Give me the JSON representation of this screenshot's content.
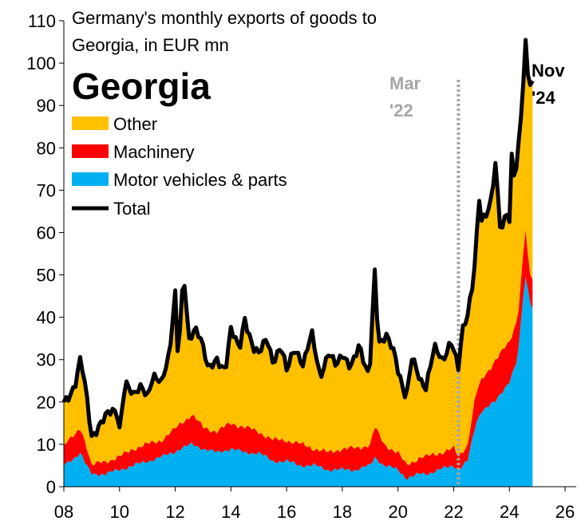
{
  "chart_data": {
    "type": "area",
    "title": "Georgia",
    "subtitle_lines": [
      "Germany's monthly exports of goods to",
      "Georgia, in EUR mn"
    ],
    "x_ticks": [
      "08",
      "10",
      "12",
      "14",
      "16",
      "18",
      "20",
      "22",
      "24",
      "26"
    ],
    "x_range": [
      2008,
      2026.4
    ],
    "ylim": [
      0,
      110
    ],
    "y_ticks": [
      "0",
      "10",
      "20",
      "30",
      "40",
      "50",
      "60",
      "70",
      "80",
      "90",
      "100",
      "110"
    ],
    "grid": false,
    "legend_position": "top-left",
    "colors": {
      "other": "#FFC000",
      "machinery": "#FF0000",
      "motor": "#00B0F0",
      "total": "#000000",
      "marker_line": "#A6A6A6"
    },
    "annotations": [
      {
        "id": "mar22",
        "lines": [
          "Mar",
          "'22"
        ],
        "x": 2022.17,
        "color": "#A6A6A6"
      },
      {
        "id": "nov24",
        "lines": [
          "Nov",
          "'24"
        ],
        "color": "#000000"
      }
    ],
    "series": [
      {
        "key": "other",
        "name": "Other",
        "role": "area"
      },
      {
        "key": "machinery",
        "name": "Machinery",
        "role": "area"
      },
      {
        "key": "motor",
        "name": "Motor vehicles & parts",
        "role": "area"
      },
      {
        "key": "total",
        "name": "Total",
        "role": "line"
      }
    ],
    "x_start": "2008-01",
    "x_end": "2024-11",
    "anchors": {
      "total": [
        [
          2008.0,
          20
        ],
        [
          2008.2,
          22
        ],
        [
          2008.4,
          24
        ],
        [
          2008.6,
          30
        ],
        [
          2008.8,
          22
        ],
        [
          2009.0,
          12
        ],
        [
          2009.3,
          15
        ],
        [
          2009.6,
          17
        ],
        [
          2009.9,
          18
        ],
        [
          2010.0,
          14
        ],
        [
          2010.2,
          25
        ],
        [
          2010.5,
          21
        ],
        [
          2010.8,
          24
        ],
        [
          2011.0,
          22
        ],
        [
          2011.2,
          26
        ],
        [
          2011.5,
          24
        ],
        [
          2011.8,
          32
        ],
        [
          2011.9,
          40
        ],
        [
          2012.0,
          46
        ],
        [
          2012.1,
          30
        ],
        [
          2012.3,
          50
        ],
        [
          2012.5,
          34
        ],
        [
          2012.7,
          38
        ],
        [
          2012.9,
          36
        ],
        [
          2013.2,
          27
        ],
        [
          2013.5,
          30
        ],
        [
          2013.8,
          28
        ],
        [
          2014.0,
          37
        ],
        [
          2014.3,
          32
        ],
        [
          2014.5,
          40
        ],
        [
          2014.8,
          33
        ],
        [
          2015.0,
          31
        ],
        [
          2015.3,
          35
        ],
        [
          2015.5,
          30
        ],
        [
          2015.8,
          33
        ],
        [
          2016.0,
          27
        ],
        [
          2016.3,
          33
        ],
        [
          2016.6,
          29
        ],
        [
          2016.9,
          36
        ],
        [
          2017.2,
          26
        ],
        [
          2017.5,
          32
        ],
        [
          2017.8,
          28
        ],
        [
          2018.0,
          31
        ],
        [
          2018.3,
          29
        ],
        [
          2018.6,
          33
        ],
        [
          2018.9,
          26
        ],
        [
          2019.0,
          30
        ],
        [
          2019.17,
          52
        ],
        [
          2019.3,
          34
        ],
        [
          2019.6,
          35
        ],
        [
          2019.9,
          31
        ],
        [
          2020.0,
          28
        ],
        [
          2020.3,
          21
        ],
        [
          2020.5,
          30
        ],
        [
          2020.8,
          25
        ],
        [
          2021.0,
          24
        ],
        [
          2021.3,
          33
        ],
        [
          2021.6,
          29
        ],
        [
          2021.9,
          35
        ],
        [
          2022.0,
          33
        ],
        [
          2022.17,
          28
        ],
        [
          2022.3,
          36
        ],
        [
          2022.5,
          40
        ],
        [
          2022.7,
          49
        ],
        [
          2022.8,
          56
        ],
        [
          2022.9,
          70
        ],
        [
          2023.0,
          63
        ],
        [
          2023.3,
          65
        ],
        [
          2023.5,
          76
        ],
        [
          2023.7,
          60
        ],
        [
          2023.9,
          66
        ],
        [
          2024.0,
          62
        ],
        [
          2024.1,
          81
        ],
        [
          2024.2,
          70
        ],
        [
          2024.3,
          78
        ],
        [
          2024.5,
          95
        ],
        [
          2024.6,
          108
        ],
        [
          2024.7,
          94
        ],
        [
          2024.83,
          96
        ]
      ],
      "motor": [
        [
          2008.0,
          5
        ],
        [
          2008.2,
          6
        ],
        [
          2008.4,
          7
        ],
        [
          2008.6,
          8
        ],
        [
          2008.8,
          5
        ],
        [
          2009.0,
          3
        ],
        [
          2009.5,
          3
        ],
        [
          2010.0,
          4
        ],
        [
          2010.5,
          5
        ],
        [
          2011.0,
          6
        ],
        [
          2011.5,
          7
        ],
        [
          2011.9,
          8
        ],
        [
          2012.2,
          9
        ],
        [
          2012.6,
          10
        ],
        [
          2013.0,
          9
        ],
        [
          2013.5,
          8
        ],
        [
          2014.0,
          9
        ],
        [
          2014.5,
          8
        ],
        [
          2015.0,
          8
        ],
        [
          2015.5,
          6
        ],
        [
          2016.0,
          6
        ],
        [
          2016.5,
          5
        ],
        [
          2017.0,
          5
        ],
        [
          2017.5,
          4
        ],
        [
          2018.0,
          4
        ],
        [
          2018.5,
          4
        ],
        [
          2019.0,
          5
        ],
        [
          2019.17,
          7
        ],
        [
          2019.5,
          5
        ],
        [
          2020.0,
          4
        ],
        [
          2020.3,
          2
        ],
        [
          2020.8,
          3
        ],
        [
          2021.0,
          3
        ],
        [
          2021.5,
          4
        ],
        [
          2022.0,
          5
        ],
        [
          2022.17,
          4
        ],
        [
          2022.5,
          6
        ],
        [
          2022.8,
          15
        ],
        [
          2023.0,
          18
        ],
        [
          2023.5,
          20
        ],
        [
          2024.0,
          25
        ],
        [
          2024.3,
          30
        ],
        [
          2024.5,
          45
        ],
        [
          2024.6,
          50
        ],
        [
          2024.7,
          45
        ],
        [
          2024.83,
          42
        ]
      ],
      "machinery": [
        [
          2008.0,
          10
        ],
        [
          2008.2,
          11
        ],
        [
          2008.4,
          12
        ],
        [
          2008.6,
          14
        ],
        [
          2008.8,
          10
        ],
        [
          2009.0,
          5
        ],
        [
          2009.5,
          6
        ],
        [
          2010.0,
          7
        ],
        [
          2010.5,
          9
        ],
        [
          2011.0,
          10
        ],
        [
          2011.5,
          11
        ],
        [
          2011.9,
          13
        ],
        [
          2012.2,
          15
        ],
        [
          2012.6,
          17
        ],
        [
          2013.0,
          14
        ],
        [
          2013.5,
          13
        ],
        [
          2014.0,
          15
        ],
        [
          2014.5,
          14
        ],
        [
          2015.0,
          13
        ],
        [
          2015.5,
          11
        ],
        [
          2016.0,
          11
        ],
        [
          2016.5,
          10
        ],
        [
          2017.0,
          9
        ],
        [
          2017.5,
          8
        ],
        [
          2018.0,
          9
        ],
        [
          2018.5,
          9
        ],
        [
          2019.0,
          10
        ],
        [
          2019.17,
          14
        ],
        [
          2019.5,
          10
        ],
        [
          2020.0,
          8
        ],
        [
          2020.3,
          5
        ],
        [
          2020.8,
          7
        ],
        [
          2021.0,
          7
        ],
        [
          2021.5,
          8
        ],
        [
          2022.0,
          9
        ],
        [
          2022.17,
          7
        ],
        [
          2022.5,
          10
        ],
        [
          2022.8,
          22
        ],
        [
          2023.0,
          25
        ],
        [
          2023.5,
          30
        ],
        [
          2024.0,
          34
        ],
        [
          2024.3,
          40
        ],
        [
          2024.5,
          55
        ],
        [
          2024.6,
          62
        ],
        [
          2024.7,
          50
        ],
        [
          2024.83,
          49
        ]
      ]
    }
  }
}
